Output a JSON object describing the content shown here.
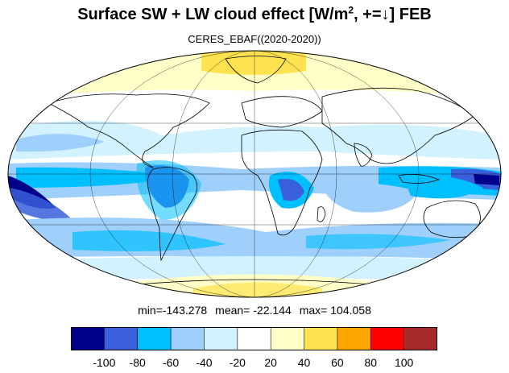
{
  "title": {
    "main": "Surface SW + LW cloud effect [W/m",
    "exp": "2",
    "tail": ", +=↓]  FEB"
  },
  "subtitle": "CERES_EBAF((2020-2020))",
  "stats": {
    "min": "min=-143.278",
    "mean": "mean= -22.144",
    "max": "max= 104.058"
  },
  "colorbar": {
    "colors": [
      "#00008b",
      "#3a5fdb",
      "#00bfff",
      "#9fcffb",
      "#d2f2ff",
      "#ffffff",
      "#ffffc8",
      "#ffe24f",
      "#ffa500",
      "#ff0000",
      "#a52a2a"
    ],
    "tick_labels": [
      "-100",
      "-80",
      "-60",
      "-40",
      "-20",
      "20",
      "40",
      "60",
      "80",
      "100"
    ]
  },
  "map_colors": {
    "ocean_background": "#ffffff",
    "light_blue": "#d2f2ff",
    "mid_blue": "#9fcffb",
    "cyan": "#00bfff",
    "blue": "#3a5fdb",
    "dark_blue": "#00008b",
    "light_yellow": "#ffffc8",
    "yellow": "#ffe24f"
  }
}
